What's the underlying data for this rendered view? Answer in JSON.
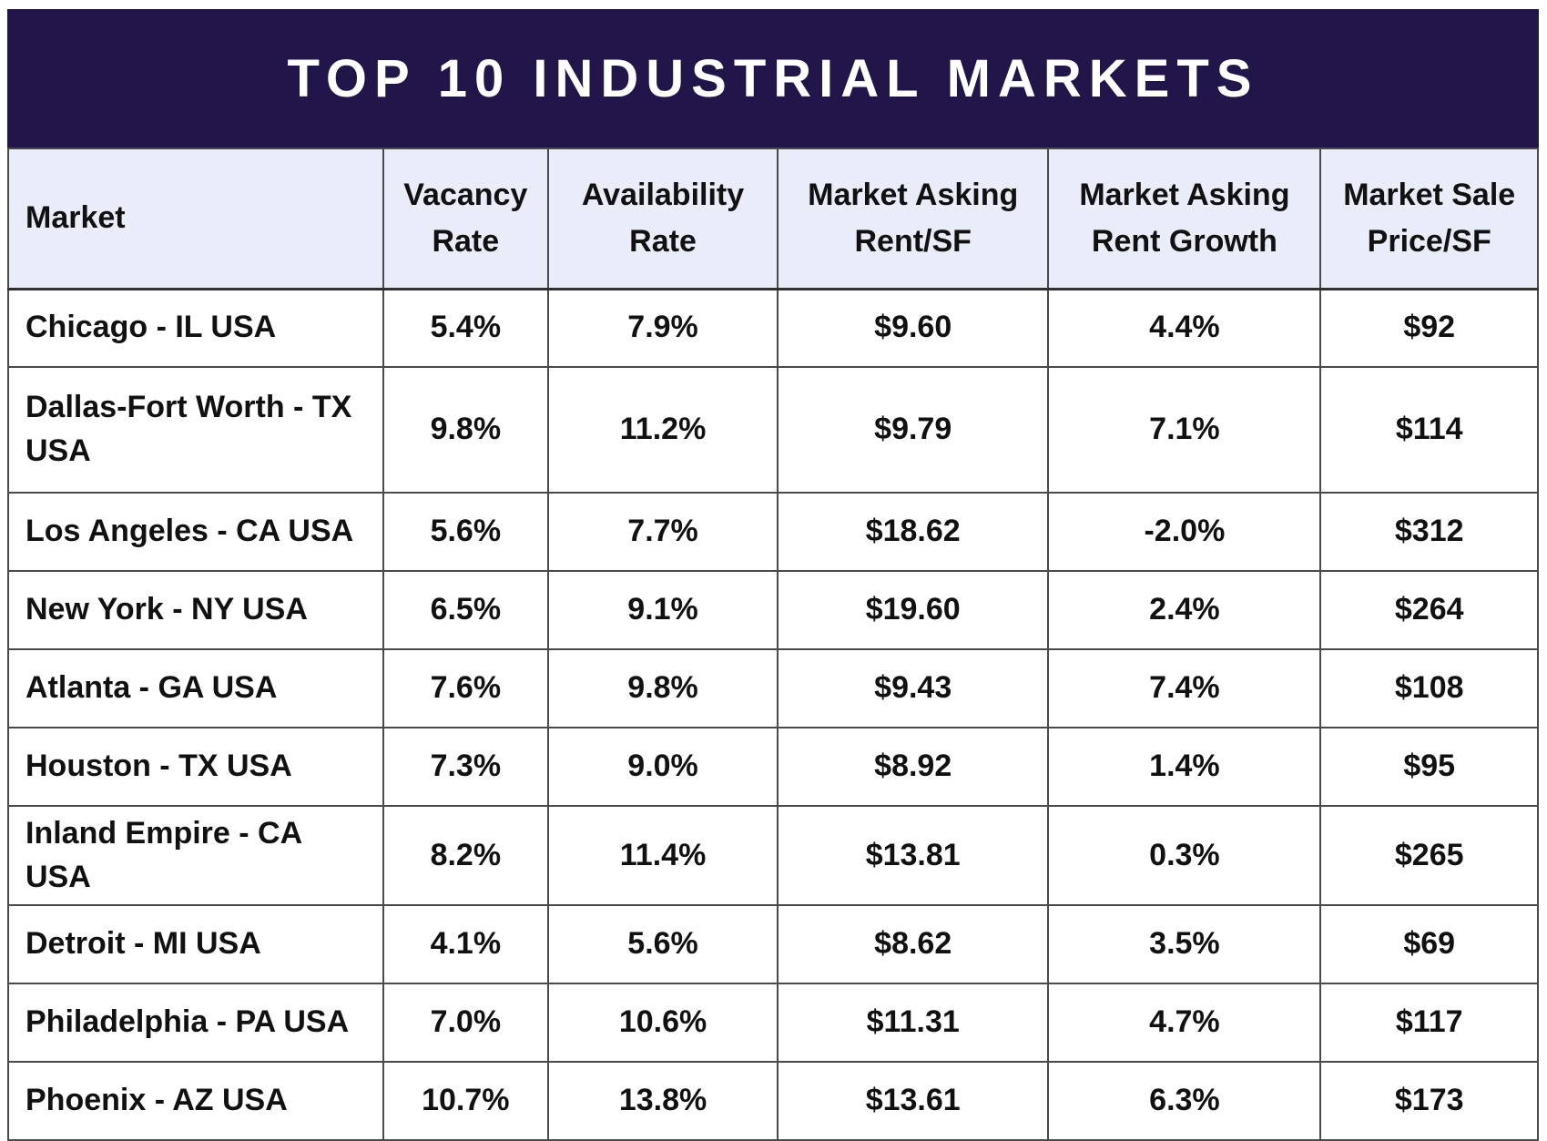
{
  "banner": {
    "title": "TOP 10 INDUSTRIAL MARKETS"
  },
  "colors": {
    "banner_background": "#211549",
    "banner_text": "#ffffff",
    "header_background": "#e9ecf9",
    "body_background": "#ffffff",
    "border": "#4a4a4a",
    "text": "#111111"
  },
  "chart_data": {
    "type": "table",
    "title": "TOP 10 INDUSTRIAL MARKETS",
    "columns": [
      "Market",
      "Vacancy Rate",
      "Availability Rate",
      "Market Asking Rent/SF",
      "Market Asking Rent Growth",
      "Market Sale Price/SF"
    ],
    "rows": [
      [
        "Chicago - IL USA",
        "5.4%",
        "7.9%",
        "$9.60",
        "4.4%",
        "$92"
      ],
      [
        "Dallas-Fort Worth - TX USA",
        "9.8%",
        "11.2%",
        "$9.79",
        "7.1%",
        "$114"
      ],
      [
        "Los Angeles - CA USA",
        "5.6%",
        "7.7%",
        "$18.62",
        "-2.0%",
        "$312"
      ],
      [
        "New York - NY USA",
        "6.5%",
        "9.1%",
        "$19.60",
        "2.4%",
        "$264"
      ],
      [
        "Atlanta - GA USA",
        "7.6%",
        "9.8%",
        "$9.43",
        "7.4%",
        "$108"
      ],
      [
        "Houston - TX USA",
        "7.3%",
        "9.0%",
        "$8.92",
        "1.4%",
        "$95"
      ],
      [
        "Inland Empire - CA USA",
        "8.2%",
        "11.4%",
        "$13.81",
        "0.3%",
        "$265"
      ],
      [
        "Detroit - MI USA",
        "4.1%",
        "5.6%",
        "$8.62",
        "3.5%",
        "$69"
      ],
      [
        "Philadelphia - PA USA",
        "7.0%",
        "10.6%",
        "$11.31",
        "4.7%",
        "$117"
      ],
      [
        "Phoenix - AZ USA",
        "10.7%",
        "13.8%",
        "$13.61",
        "6.3%",
        "$173"
      ]
    ]
  }
}
